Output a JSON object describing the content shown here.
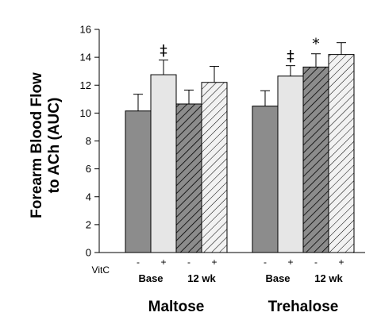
{
  "chart_data": {
    "type": "bar",
    "ylabel_lines": [
      "Forearm Blood Flow",
      "to ACh (AUC)"
    ],
    "ylim": [
      0,
      16
    ],
    "yticks": [
      0,
      2,
      4,
      6,
      8,
      10,
      12,
      14,
      16
    ],
    "condition_label": "VitC",
    "groups": [
      {
        "name": "Maltose",
        "subgroups": [
          {
            "name": "Base",
            "bars": [
              {
                "vitc": "-",
                "value": 10.15,
                "error": 1.2,
                "fill": "solid-dark",
                "annotation": ""
              },
              {
                "vitc": "+",
                "value": 12.75,
                "error": 1.05,
                "fill": "solid-light",
                "annotation": "‡"
              }
            ]
          },
          {
            "name": "12 wk",
            "bars": [
              {
                "vitc": "-",
                "value": 10.65,
                "error": 1.0,
                "fill": "hatch-dark",
                "annotation": ""
              },
              {
                "vitc": "+",
                "value": 12.2,
                "error": 1.15,
                "fill": "hatch-light",
                "annotation": ""
              }
            ]
          }
        ]
      },
      {
        "name": "Trehalose",
        "subgroups": [
          {
            "name": "Base",
            "bars": [
              {
                "vitc": "-",
                "value": 10.5,
                "error": 1.1,
                "fill": "solid-dark",
                "annotation": ""
              },
              {
                "vitc": "+",
                "value": 12.65,
                "error": 0.75,
                "fill": "solid-light",
                "annotation": "‡"
              }
            ]
          },
          {
            "name": "12 wk",
            "bars": [
              {
                "vitc": "-",
                "value": 13.3,
                "error": 0.95,
                "fill": "hatch-dark",
                "annotation": "*"
              },
              {
                "vitc": "+",
                "value": 14.2,
                "error": 0.85,
                "fill": "hatch-light",
                "annotation": ""
              }
            ]
          }
        ]
      }
    ],
    "colors": {
      "dark": "#8c8c8c",
      "light": "#e6e6e6",
      "hatch_dark_bg": "#8c8c8c",
      "hatch_light_bg": "#f2f2f2",
      "stroke": "#000000"
    }
  }
}
